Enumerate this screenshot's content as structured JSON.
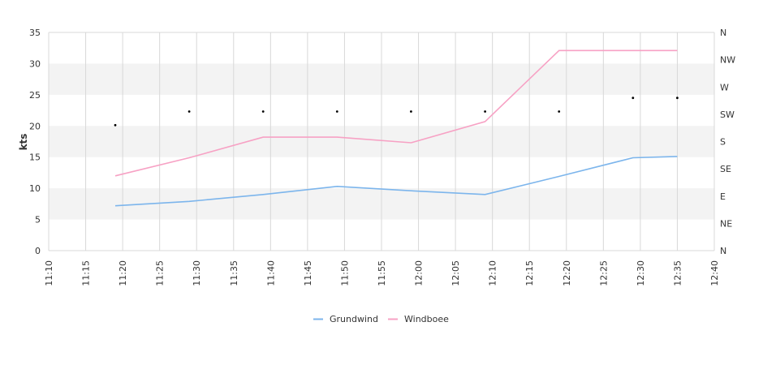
{
  "chart_data": {
    "type": "line",
    "ylabel": "kts",
    "ylim": [
      0,
      35
    ],
    "y_ticks": [
      0,
      5,
      10,
      15,
      20,
      25,
      30,
      35
    ],
    "x_ticks": [
      "11:10",
      "11:15",
      "11:20",
      "11:25",
      "11:30",
      "11:35",
      "11:40",
      "11:45",
      "11:50",
      "11:55",
      "12:00",
      "12:05",
      "12:10",
      "12:15",
      "12:20",
      "12:25",
      "12:30",
      "12:35",
      "12:40"
    ],
    "xlim": [
      "11:10",
      "12:40"
    ],
    "y2_ticks": [
      "N",
      "NE",
      "E",
      "SE",
      "S",
      "SW",
      "W",
      "NW",
      "N"
    ],
    "grid": "vertical lines and alternating horizontal bands",
    "legend_position": "bottom",
    "series": [
      {
        "name": "Grundwind",
        "color": "#7cb5ec",
        "points": [
          {
            "x": "11:19",
            "y": 7.2
          },
          {
            "x": "11:29",
            "y": 7.9
          },
          {
            "x": "11:39",
            "y": 9.0
          },
          {
            "x": "11:49",
            "y": 10.3
          },
          {
            "x": "11:59",
            "y": 9.6
          },
          {
            "x": "12:09",
            "y": 9.0
          },
          {
            "x": "12:19",
            "y": 11.9
          },
          {
            "x": "12:29",
            "y": 14.9
          },
          {
            "x": "12:35",
            "y": 15.1
          }
        ]
      },
      {
        "name": "Windboee",
        "color": "#f7a1c4",
        "points": [
          {
            "x": "11:19",
            "y": 12.0
          },
          {
            "x": "11:29",
            "y": 14.9
          },
          {
            "x": "11:39",
            "y": 18.2
          },
          {
            "x": "11:49",
            "y": 18.2
          },
          {
            "x": "11:59",
            "y": 17.3
          },
          {
            "x": "12:09",
            "y": 20.7
          },
          {
            "x": "12:19",
            "y": 32.1
          },
          {
            "x": "12:29",
            "y": 32.1
          },
          {
            "x": "12:35",
            "y": 32.1
          }
        ]
      },
      {
        "series_type": "scatter",
        "axis": "direction",
        "color": "#000000",
        "points": [
          {
            "x": "11:19",
            "y": 4.6
          },
          {
            "x": "11:29",
            "y": 5.1
          },
          {
            "x": "11:39",
            "y": 5.1
          },
          {
            "x": "11:49",
            "y": 5.1
          },
          {
            "x": "11:59",
            "y": 5.1
          },
          {
            "x": "12:09",
            "y": 5.1
          },
          {
            "x": "12:19",
            "y": 5.1
          },
          {
            "x": "12:29",
            "y": 5.6
          },
          {
            "x": "12:35",
            "y": 5.6
          }
        ]
      }
    ]
  }
}
